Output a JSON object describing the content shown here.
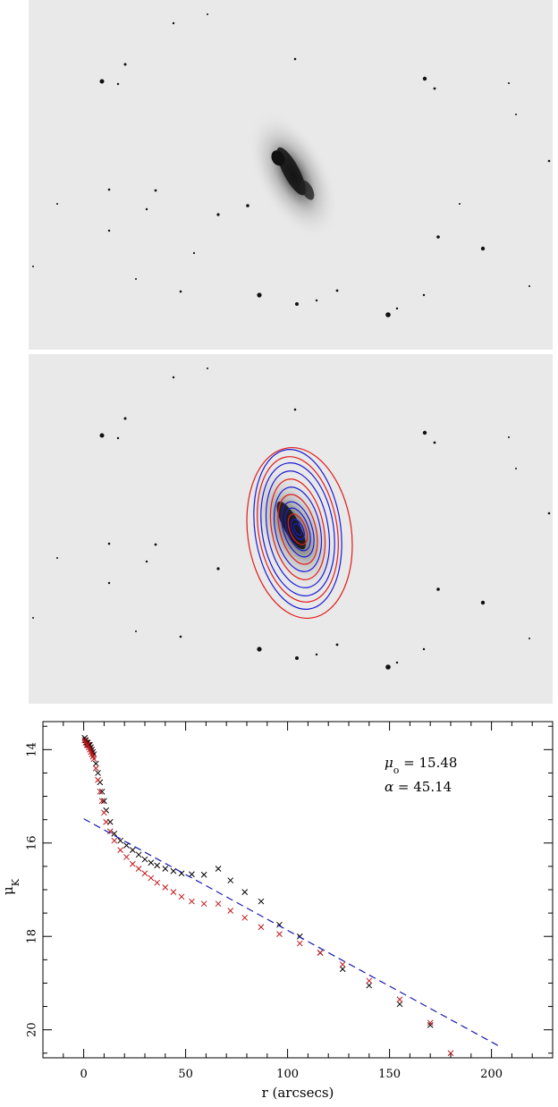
{
  "images": {
    "top_panel": "galaxy-image",
    "middle_panel": "galaxy-image-with-isophote-ellipses",
    "contour_colors": [
      "#1b1bd6",
      "#e21b1b"
    ]
  },
  "chart_data": {
    "type": "scatter",
    "title": "",
    "xlabel": "r (arcsecs)",
    "ylabel": "μ_K",
    "xlim": [
      -20,
      230
    ],
    "ylim": [
      20.6,
      13.4
    ],
    "y_inverted": true,
    "grid": false,
    "x_ticks": [
      0,
      50,
      100,
      150,
      200
    ],
    "y_ticks": [
      14,
      16,
      18,
      20
    ],
    "annotations": [
      {
        "symbol": "μ",
        "subscript": "o",
        "text": " = 15.48"
      },
      {
        "symbol": "α",
        "subscript": "",
        "text": " = 45.14"
      }
    ],
    "series": [
      {
        "marker": "x",
        "color": "#000000",
        "x": [
          0.5,
          1,
          1.5,
          2,
          2.5,
          3,
          3.5,
          4,
          4.5,
          5,
          6,
          7,
          8,
          9,
          10,
          11,
          13,
          15,
          18,
          21,
          24,
          27,
          30,
          33,
          36,
          40,
          44,
          48,
          53,
          59,
          66,
          72,
          79,
          87,
          96,
          106,
          116,
          127,
          140,
          155,
          170
        ],
        "y": [
          13.75,
          13.8,
          13.85,
          13.85,
          13.9,
          13.9,
          13.95,
          14.0,
          14.05,
          14.1,
          14.3,
          14.5,
          14.7,
          14.9,
          15.1,
          15.3,
          15.55,
          15.8,
          15.95,
          16.05,
          16.15,
          16.25,
          16.35,
          16.42,
          16.48,
          16.55,
          16.6,
          16.65,
          16.67,
          16.68,
          16.55,
          16.8,
          17.05,
          17.25,
          17.75,
          18.0,
          18.35,
          18.7,
          19.05,
          19.45,
          19.9
        ]
      },
      {
        "marker": "x",
        "color": "#c0161b",
        "x": [
          0.5,
          1,
          1.5,
          2,
          2.5,
          3,
          3.5,
          4,
          4.5,
          5,
          6,
          7,
          8,
          9,
          10,
          11,
          13,
          15,
          18,
          21,
          24,
          27,
          30,
          33,
          36,
          40,
          44,
          48,
          53,
          59,
          66,
          72,
          79,
          87,
          96,
          106,
          116,
          127,
          140,
          155,
          170,
          180
        ],
        "y": [
          13.8,
          13.85,
          13.9,
          13.9,
          13.95,
          14.0,
          14.05,
          14.1,
          14.15,
          14.2,
          14.4,
          14.65,
          14.9,
          15.1,
          15.35,
          15.55,
          15.75,
          15.95,
          16.15,
          16.3,
          16.45,
          16.55,
          16.65,
          16.75,
          16.85,
          16.95,
          17.05,
          17.15,
          17.25,
          17.3,
          17.3,
          17.45,
          17.6,
          17.8,
          17.95,
          18.15,
          18.35,
          18.6,
          18.95,
          19.35,
          19.85,
          20.5
        ]
      },
      {
        "type": "line",
        "style": "dashed",
        "color": "#1a1ab0",
        "x": [
          0,
          205
        ],
        "y": [
          15.48,
          20.38
        ]
      }
    ]
  }
}
